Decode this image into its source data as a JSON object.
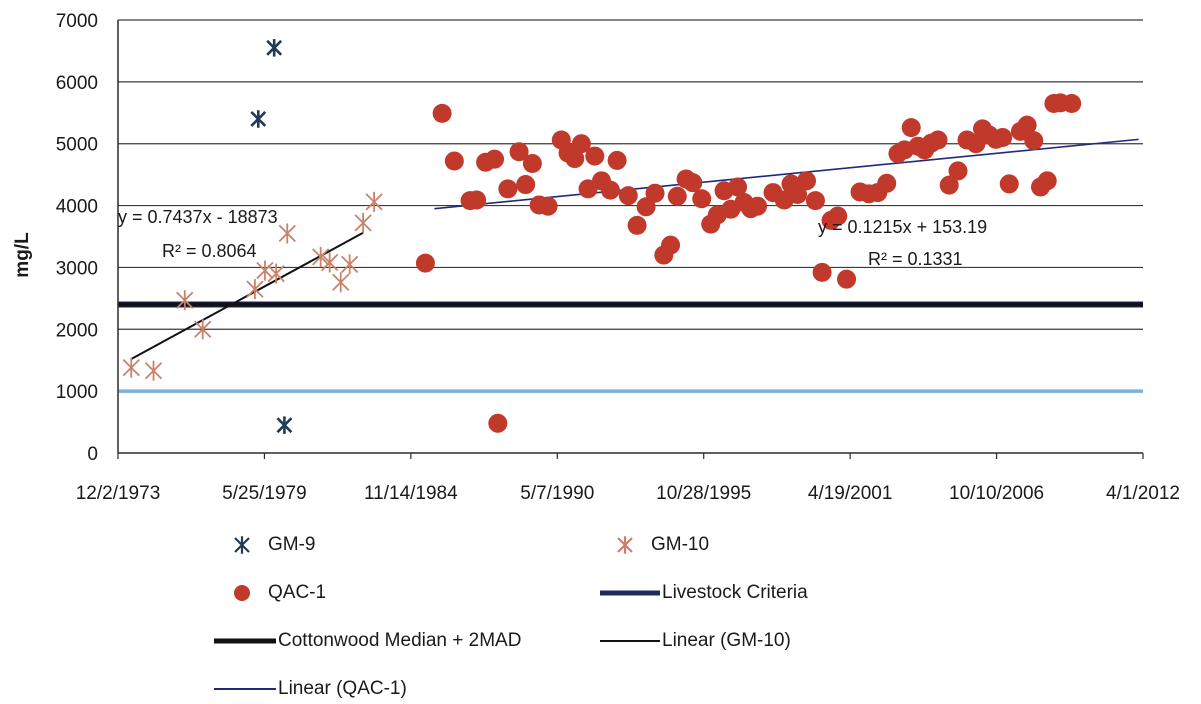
{
  "chart_data": {
    "type": "scatter",
    "title": "",
    "xlabel": "",
    "ylabel": "mg/L",
    "x_axis": {
      "type": "date",
      "range": [
        "1973-12-02",
        "2012-04-01"
      ],
      "ticks": [
        "1973-12-02",
        "1979-05-25",
        "1984-11-14",
        "1990-05-07",
        "1995-10-28",
        "2001-04-19",
        "2006-10-10",
        "2012-04-01"
      ],
      "tick_labels": [
        "12/2/1973",
        "5/25/1979",
        "11/14/1984",
        "5/7/1990",
        "10/28/1995",
        "4/19/2001",
        "10/10/2006",
        "4/1/2012"
      ]
    },
    "y_axis": {
      "range": [
        0,
        7000
      ],
      "ticks": [
        0,
        1000,
        2000,
        3000,
        4000,
        5000,
        6000,
        7000
      ],
      "tick_labels": [
        "0",
        "1000",
        "2000",
        "3000",
        "4000",
        "5000",
        "6000",
        "7000"
      ]
    },
    "grid": "horizontal",
    "legend_position": "bottom",
    "series": [
      {
        "name": "GM-9",
        "kind": "scatter",
        "marker": "asterisk",
        "color": "#1f3b57",
        "points": [
          [
            "1979-10-05",
            6550
          ],
          [
            "1979-03-02",
            5400
          ],
          [
            "1980-02-22",
            450
          ]
        ]
      },
      {
        "name": "GM-10",
        "kind": "scatter",
        "marker": "asterisk",
        "color": "#c9826a",
        "points": [
          [
            "1974-06-01",
            1380
          ],
          [
            "1975-04-01",
            1330
          ],
          [
            "1976-06-01",
            2470
          ],
          [
            "1977-02-01",
            2000
          ],
          [
            "1979-01-15",
            2650
          ],
          [
            "1979-06-01",
            2950
          ],
          [
            "1979-11-01",
            2900
          ],
          [
            "1980-04-01",
            3550
          ],
          [
            "1981-07-01",
            3170
          ],
          [
            "1981-11-01",
            3080
          ],
          [
            "1982-04-01",
            2760
          ],
          [
            "1982-08-01",
            3050
          ],
          [
            "1983-02-01",
            3720
          ],
          [
            "1983-07-01",
            4060
          ]
        ]
      },
      {
        "name": "QAC-1",
        "kind": "scatter",
        "marker": "circle",
        "color": "#c0392b",
        "points": [
          [
            "1985-06-01",
            3070
          ],
          [
            "1986-01-15",
            5490
          ],
          [
            "1986-07-01",
            4720
          ],
          [
            "1987-02-01",
            4080
          ],
          [
            "1987-05-01",
            4090
          ],
          [
            "1987-09-01",
            4700
          ],
          [
            "1988-01-01",
            4750
          ],
          [
            "1988-02-15",
            480
          ],
          [
            "1988-07-01",
            4270
          ],
          [
            "1988-12-01",
            4870
          ],
          [
            "1989-03-01",
            4340
          ],
          [
            "1989-06-01",
            4680
          ],
          [
            "1989-09-01",
            4010
          ],
          [
            "1990-01-01",
            3990
          ],
          [
            "1990-07-01",
            5060
          ],
          [
            "1990-10-01",
            4850
          ],
          [
            "1991-01-01",
            4760
          ],
          [
            "1991-04-01",
            5000
          ],
          [
            "1991-07-01",
            4270
          ],
          [
            "1991-10-01",
            4800
          ],
          [
            "1992-01-01",
            4400
          ],
          [
            "1992-05-01",
            4250
          ],
          [
            "1992-08-01",
            4730
          ],
          [
            "1993-01-01",
            4160
          ],
          [
            "1993-05-01",
            3680
          ],
          [
            "1993-09-01",
            3980
          ],
          [
            "1994-01-01",
            4200
          ],
          [
            "1994-05-01",
            3200
          ],
          [
            "1994-08-01",
            3360
          ],
          [
            "1994-11-01",
            4150
          ],
          [
            "1995-03-01",
            4430
          ],
          [
            "1995-06-01",
            4370
          ],
          [
            "1995-10-01",
            4110
          ],
          [
            "1996-02-01",
            3700
          ],
          [
            "1996-05-01",
            3850
          ],
          [
            "1996-08-01",
            4240
          ],
          [
            "1996-11-01",
            3940
          ],
          [
            "1997-02-01",
            4300
          ],
          [
            "1997-05-01",
            4050
          ],
          [
            "1997-08-01",
            3950
          ],
          [
            "1997-11-01",
            3990
          ],
          [
            "1998-06-01",
            4210
          ],
          [
            "1998-11-01",
            4090
          ],
          [
            "1999-02-01",
            4350
          ],
          [
            "1999-05-01",
            4180
          ],
          [
            "1999-09-01",
            4400
          ],
          [
            "2000-01-01",
            4080
          ],
          [
            "2000-04-01",
            2920
          ],
          [
            "2000-08-01",
            3760
          ],
          [
            "2000-11-01",
            3830
          ],
          [
            "2001-03-01",
            2810
          ],
          [
            "2001-09-01",
            4220
          ],
          [
            "2002-01-01",
            4190
          ],
          [
            "2002-05-01",
            4210
          ],
          [
            "2002-09-01",
            4360
          ],
          [
            "2003-02-01",
            4840
          ],
          [
            "2003-05-01",
            4900
          ],
          [
            "2003-08-01",
            5260
          ],
          [
            "2003-11-01",
            4960
          ],
          [
            "2004-02-01",
            4900
          ],
          [
            "2004-05-01",
            5010
          ],
          [
            "2004-08-01",
            5060
          ],
          [
            "2005-01-01",
            4330
          ],
          [
            "2005-05-01",
            4560
          ],
          [
            "2005-09-01",
            5060
          ],
          [
            "2006-01-01",
            5000
          ],
          [
            "2006-04-01",
            5240
          ],
          [
            "2006-07-01",
            5140
          ],
          [
            "2006-10-01",
            5070
          ],
          [
            "2007-01-01",
            5100
          ],
          [
            "2007-04-01",
            4350
          ],
          [
            "2007-09-01",
            5200
          ],
          [
            "2007-12-01",
            5300
          ],
          [
            "2008-03-01",
            5050
          ],
          [
            "2008-06-01",
            4300
          ],
          [
            "2008-09-01",
            4400
          ],
          [
            "2008-12-01",
            5650
          ],
          [
            "2009-03-01",
            5660
          ],
          [
            "2009-08-01",
            5650
          ]
        ]
      }
    ],
    "reference_lines": [
      {
        "name": "Livestock Criteria",
        "value": 2400,
        "color": "#1f2a5c"
      },
      {
        "name": "Cottonwood Median + 2MAD",
        "value": 2400,
        "color": "#111111"
      },
      {
        "name": "",
        "value": 1000,
        "color": "#7fb0dc"
      }
    ],
    "trendlines": [
      {
        "name": "Linear (GM-10)",
        "color": "#111111",
        "from": [
          "1974-06-01",
          1520
        ],
        "to": [
          "1983-02-01",
          3560
        ],
        "equation": "y = 0.7437x - 18873",
        "r_squared": "R² = 0.8064"
      },
      {
        "name": "Linear (QAC-1)",
        "color": "#1f2a7a",
        "from": [
          "1985-10-01",
          3950
        ],
        "to": [
          "2012-02-01",
          5070
        ],
        "equation": "y = 0.1215x + 153.19",
        "r_squared": "R² = 0.1331"
      }
    ],
    "legend": [
      {
        "label": "GM-9",
        "symbol": "asterisk",
        "color": "#1f3b57"
      },
      {
        "label": "GM-10",
        "symbol": "asterisk",
        "color": "#c9826a"
      },
      {
        "label": "QAC-1",
        "symbol": "circle",
        "color": "#c0392b"
      },
      {
        "label": "Livestock Criteria",
        "symbol": "line-thick",
        "color": "#1f2a5c"
      },
      {
        "label": "Cottonwood Median + 2MAD",
        "symbol": "line-thick",
        "color": "#111111"
      },
      {
        "label": "Linear (GM-10)",
        "symbol": "line-thin",
        "color": "#111111"
      },
      {
        "label": "Linear (QAC-1)",
        "symbol": "line-thin",
        "color": "#1f2a7a"
      }
    ]
  }
}
